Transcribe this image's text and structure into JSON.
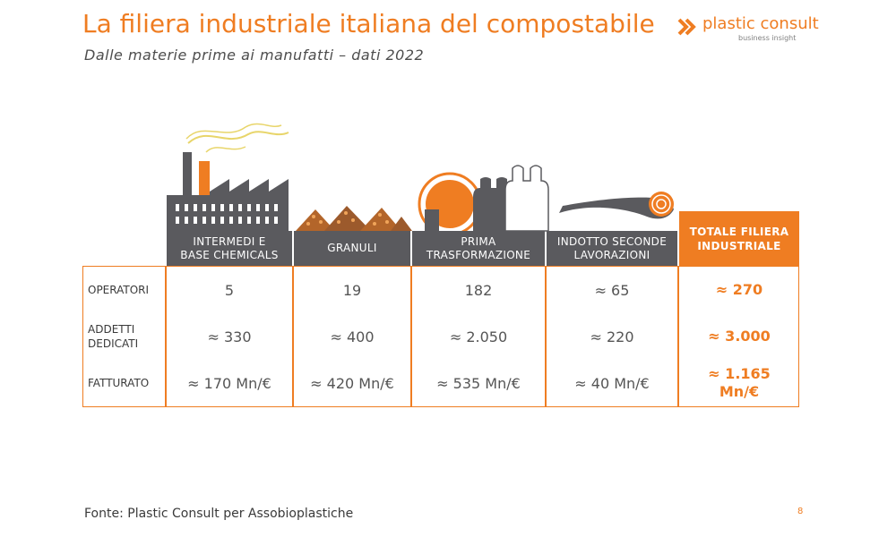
{
  "header": {
    "title": "La filiera industriale italiana del compostabile",
    "subtitle": "Dalle materie prime ai manufatti – dati 2022"
  },
  "logo": {
    "name": "plastic consult",
    "tagline": "business insight",
    "icon": "chevron-logo-icon"
  },
  "colors": {
    "accent": "#ef7d22",
    "dark": "#5a5a5e",
    "text": "#555555"
  },
  "table": {
    "columns": [
      {
        "label": "INTERMEDI E\nBASE CHEMICALS",
        "icon": "factory-icon"
      },
      {
        "label": "GRANULI",
        "icon": "granules-icon"
      },
      {
        "label": "PRIMA\nTRASFORMAZIONE",
        "icon": "bag-roll-icon"
      },
      {
        "label": "INDOTTO SECONDE\nLAVORAZIONI",
        "icon": "film-roll-icon"
      }
    ],
    "total_label": "TOTALE FILIERA\nINDUSTRIALE",
    "rows": [
      {
        "label": "OPERATORI",
        "values": [
          "5",
          "19",
          "182",
          "≈ 65"
        ],
        "total": "≈ 270"
      },
      {
        "label": "ADDETTI\nDEDICATI",
        "values": [
          "≈ 330",
          "≈ 400",
          "≈ 2.050",
          "≈ 220"
        ],
        "total": "≈ 3.000"
      },
      {
        "label": "FATTURATO",
        "values": [
          "≈ 170 Mn/€",
          "≈ 420 Mn/€",
          "≈ 535 Mn/€",
          "≈ 40 Mn/€"
        ],
        "total": "≈ 1.165\nMn/€"
      }
    ]
  },
  "footer": {
    "source": "Fonte: Plastic Consult per Assobioplastiche",
    "page_number": "8"
  }
}
